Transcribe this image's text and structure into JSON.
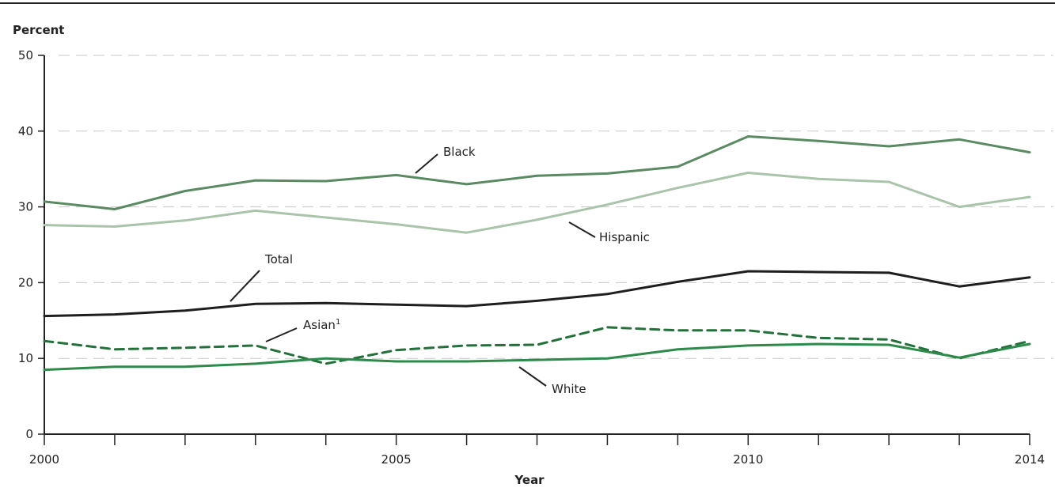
{
  "chart_data": {
    "type": "line",
    "ylabel": "Percent",
    "xlabel": "Year",
    "ylim": [
      0,
      50
    ],
    "yticks": [
      "0",
      "10",
      "20",
      "30",
      "40",
      "50"
    ],
    "xlim": [
      2000,
      2014
    ],
    "xticks": [
      "2000",
      "2005",
      "2010",
      "2014"
    ],
    "grid": true,
    "x": [
      2000,
      2001,
      2002,
      2003,
      2004,
      2005,
      2006,
      2007,
      2008,
      2009,
      2010,
      2011,
      2012,
      2013,
      2014
    ],
    "series": [
      {
        "name": "Black",
        "color": "#5a8a62",
        "dash": "solid",
        "values": [
          30.7,
          29.7,
          32.1,
          33.5,
          33.4,
          34.2,
          33.0,
          34.1,
          34.4,
          35.3,
          39.3,
          38.7,
          38.0,
          38.9,
          37.2
        ]
      },
      {
        "name": "Hispanic",
        "color": "#a9c4aa",
        "dash": "solid",
        "values": [
          27.6,
          27.4,
          28.2,
          29.5,
          28.6,
          27.7,
          26.6,
          28.3,
          30.3,
          32.5,
          34.5,
          33.7,
          33.3,
          30.0,
          31.3
        ]
      },
      {
        "name": "Total",
        "color": "#1e1e1e",
        "dash": "solid",
        "values": [
          15.6,
          15.8,
          16.3,
          17.2,
          17.3,
          17.1,
          16.9,
          17.6,
          18.5,
          20.1,
          21.5,
          21.4,
          21.3,
          19.5,
          20.7
        ]
      },
      {
        "name": "Asian",
        "label_sup": "1",
        "color": "#23703a",
        "dash": "dashed",
        "values": [
          12.3,
          11.2,
          11.4,
          11.7,
          9.3,
          11.1,
          11.7,
          11.8,
          14.1,
          13.7,
          13.7,
          12.7,
          12.5,
          10.0,
          12.3
        ]
      },
      {
        "name": "White",
        "color": "#2e8a4a",
        "dash": "solid",
        "values": [
          8.5,
          8.9,
          8.9,
          9.3,
          10.0,
          9.6,
          9.6,
          9.8,
          10.0,
          11.2,
          11.7,
          11.9,
          11.8,
          10.1,
          11.9
        ]
      }
    ]
  }
}
